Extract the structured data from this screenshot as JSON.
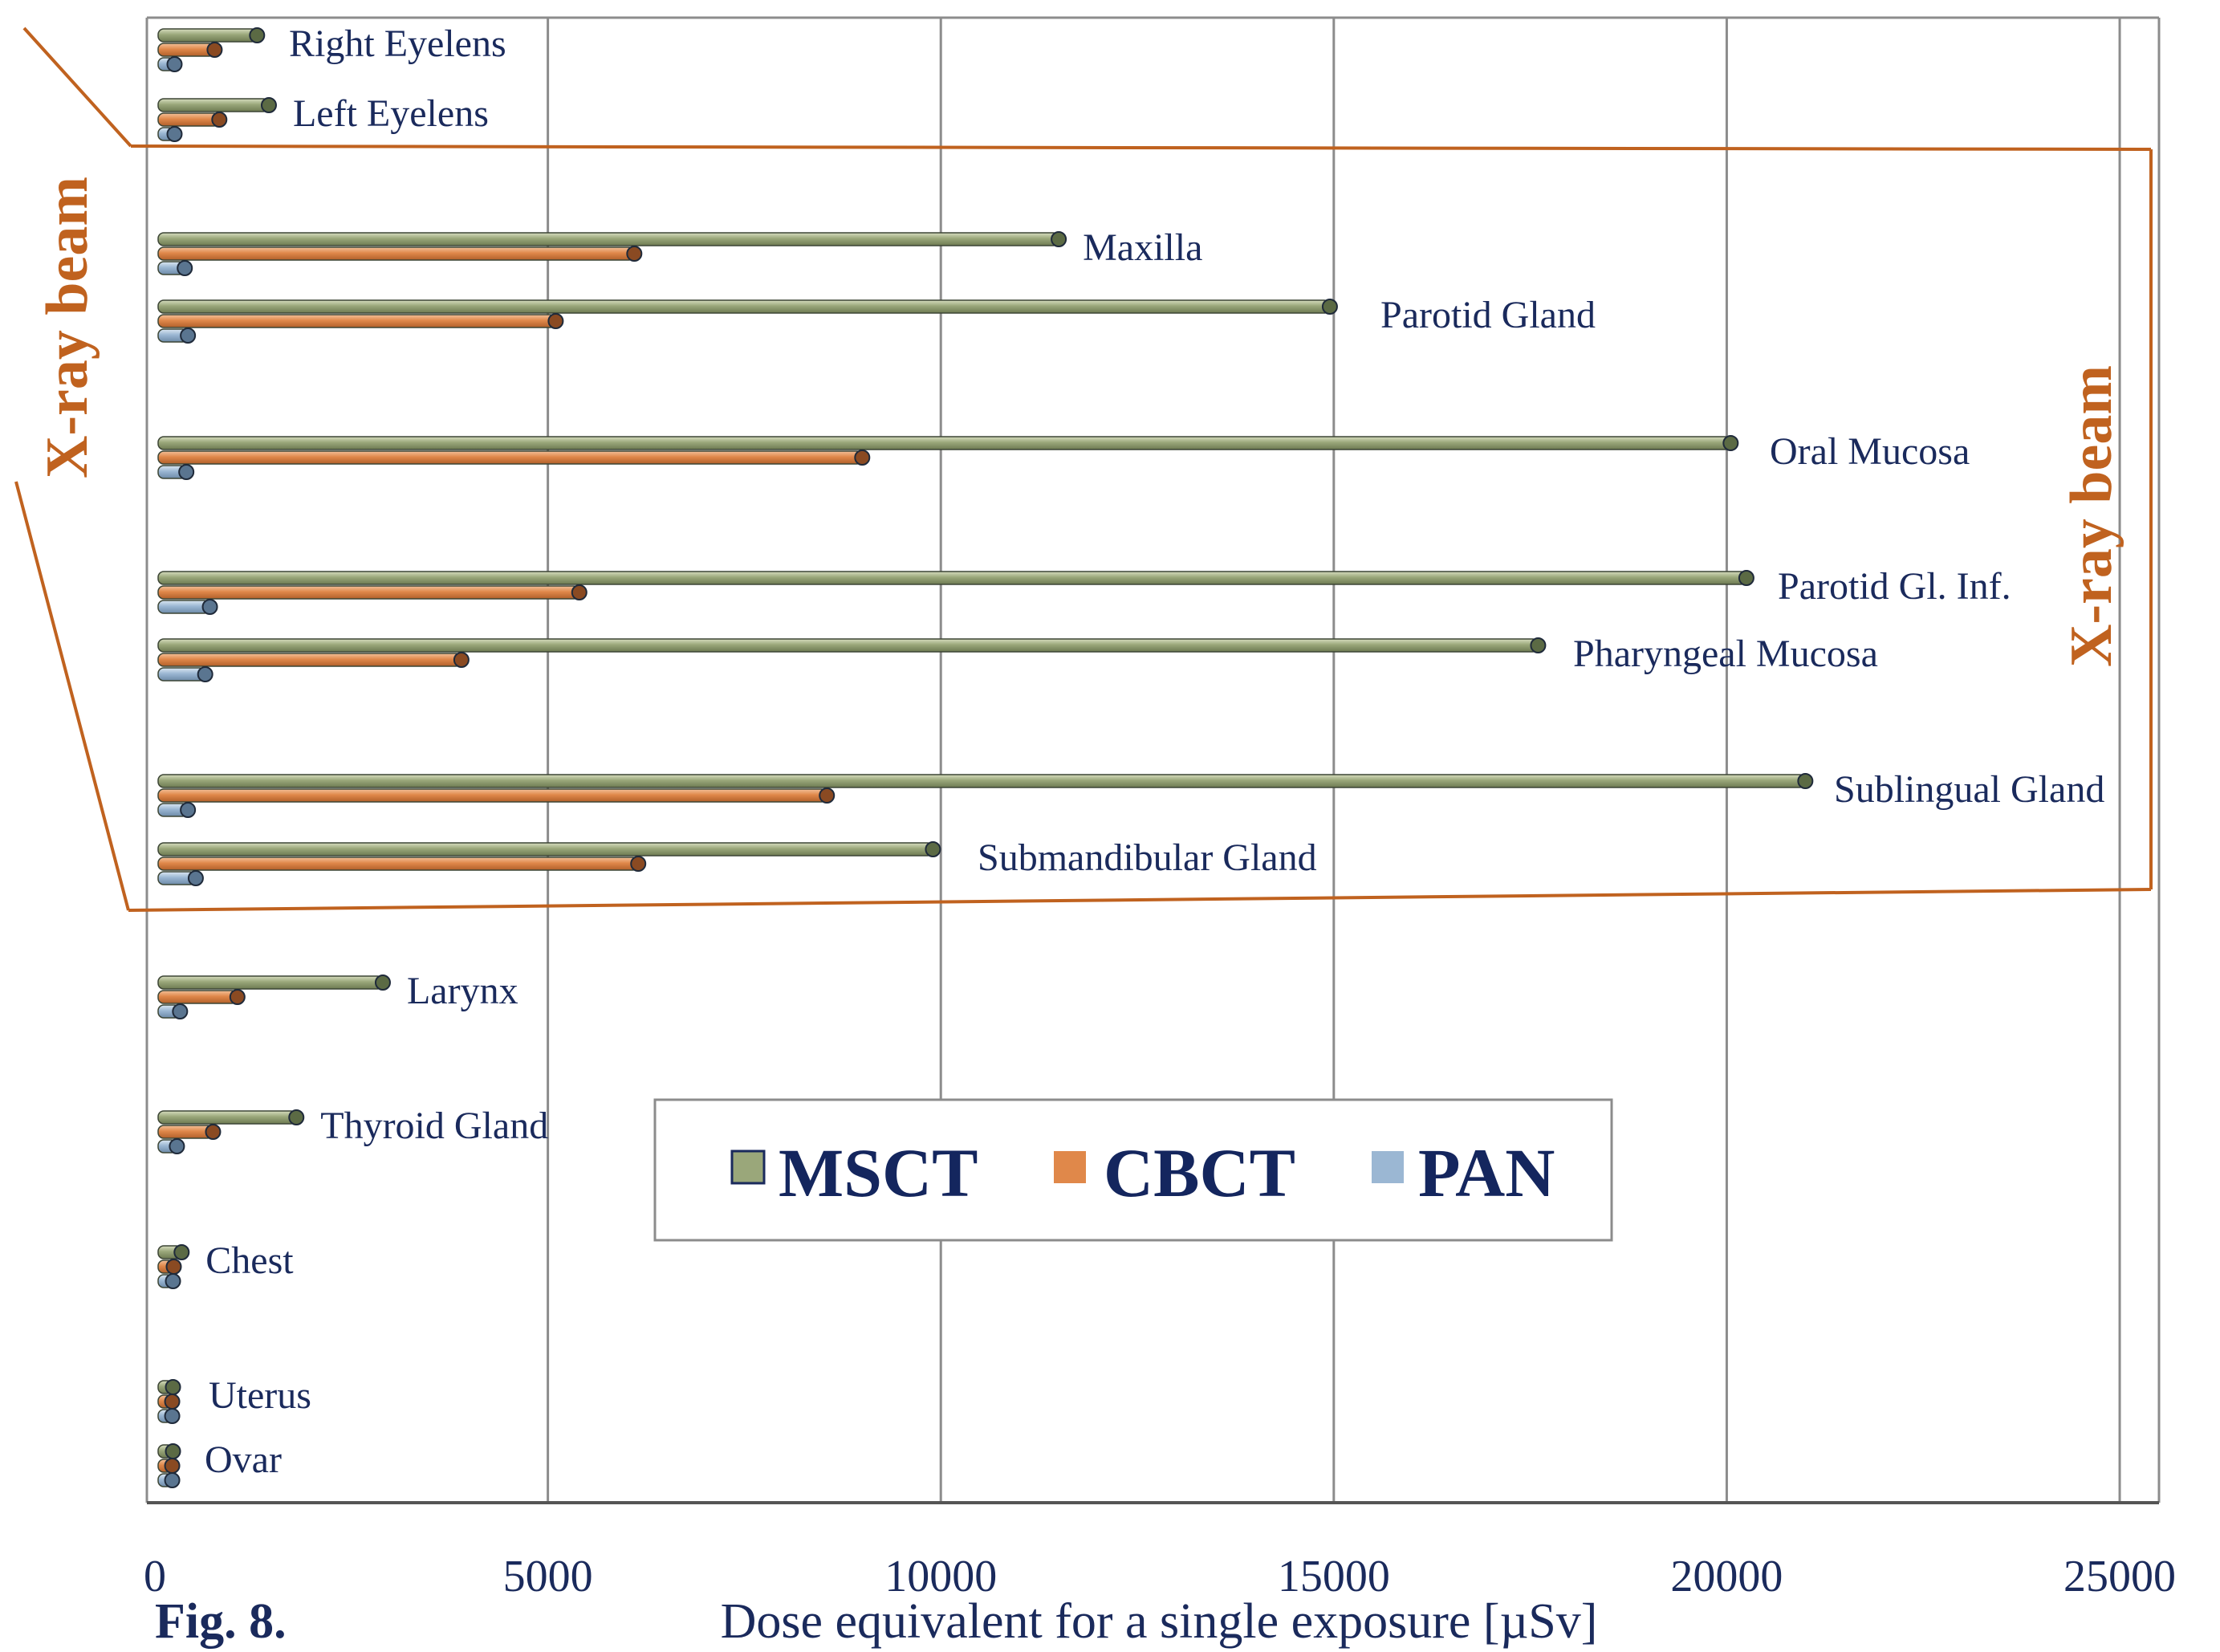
{
  "chart_data": {
    "type": "bar",
    "orientation": "horizontal",
    "figure_label": "Fig. 8.",
    "xlabel": "Dose equivalent for a single exposure [µSv]",
    "xlim": [
      0,
      25500
    ],
    "xticks": [
      0,
      5000,
      10000,
      15000,
      20000,
      25000
    ],
    "grid": "vertical",
    "legend_placement": "lower-center",
    "categories": [
      "Right Eyelens",
      "Left Eyelens",
      "Maxilla",
      "Parotid Gland",
      "Oral Mucosa",
      "Parotid Gl. Inf.",
      "Pharyngeal Mucosa",
      "Sublingual Gland",
      "Submandibular Gland",
      "Larynx",
      "Thyroid Gland",
      "Chest",
      "Uterus",
      "Ovar"
    ],
    "series": [
      {
        "name": "MSCT",
        "color": "#9aa77a",
        "values": [
          1300,
          1450,
          11500,
          14950,
          20050,
          20250,
          17600,
          21000,
          9900,
          2900,
          1800,
          340,
          230,
          230
        ]
      },
      {
        "name": "CBCT",
        "color": "#e0884a",
        "values": [
          760,
          820,
          6100,
          5100,
          9000,
          5400,
          3900,
          8550,
          6150,
          1050,
          740,
          240,
          220,
          220
        ]
      },
      {
        "name": "PAN",
        "color": "#9bb7d3",
        "values": [
          250,
          250,
          380,
          420,
          400,
          700,
          640,
          420,
          520,
          320,
          280,
          230,
          220,
          220
        ]
      }
    ],
    "annotations": [
      {
        "text": "X-ray beam",
        "placement": "left, rotated"
      },
      {
        "text": "X-ray beam",
        "placement": "right, rotated"
      }
    ]
  }
}
